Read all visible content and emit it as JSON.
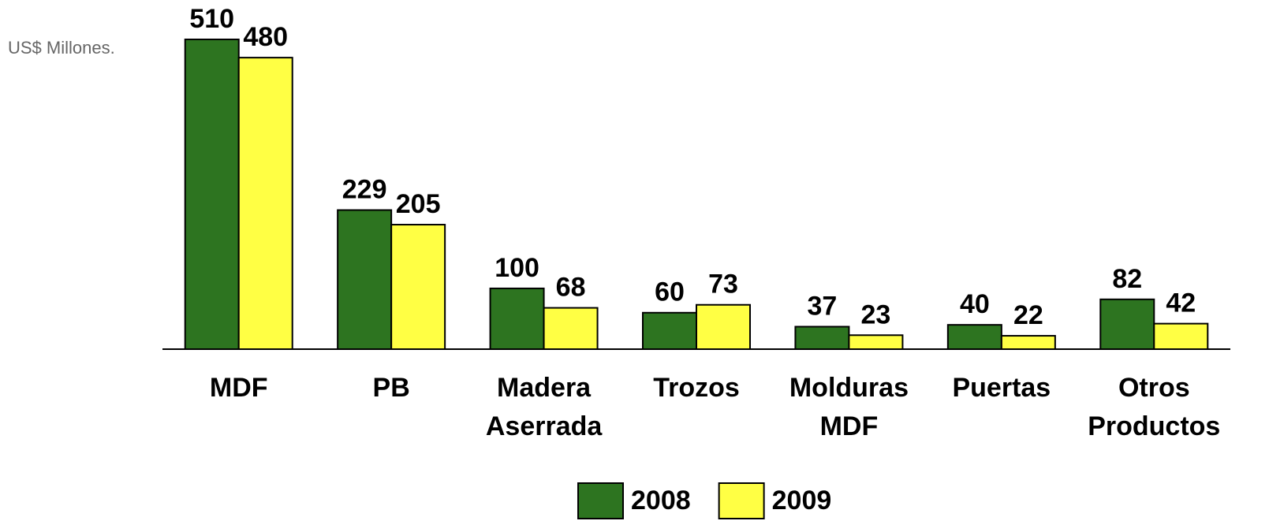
{
  "chart_data": {
    "type": "bar",
    "y_label": "US$ Millones.",
    "categories": [
      "MDF",
      "PB",
      "Madera Aserrada",
      "Trozos",
      "Molduras MDF",
      "Puertas",
      "Otros Productos"
    ],
    "series": [
      {
        "name": "2008",
        "color": "#2d7420",
        "values": [
          510,
          229,
          100,
          60,
          37,
          40,
          82
        ]
      },
      {
        "name": "2009",
        "color": "#ffff44",
        "values": [
          480,
          205,
          68,
          73,
          23,
          22,
          42
        ]
      }
    ],
    "ylim": [
      0,
      510
    ],
    "legend": "bottom"
  }
}
